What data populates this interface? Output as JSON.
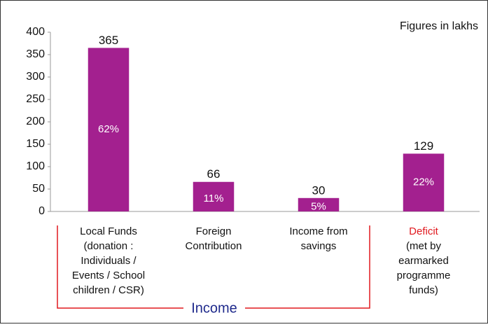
{
  "chart_data": {
    "type": "bar",
    "categories": [
      [
        "Local Funds",
        "(donation :",
        "Individuals /",
        "Events / School",
        "children / CSR)"
      ],
      [
        "Foreign",
        "Contribution"
      ],
      [
        "Income from",
        "savings"
      ],
      [
        "Deficit",
        "(met by",
        "earmarked",
        "programme",
        "funds)"
      ]
    ],
    "values": [
      365,
      66,
      30,
      129
    ],
    "share_labels": [
      "62%",
      "11%",
      "5%",
      "22%"
    ],
    "color": "#a3208f",
    "ylim": [
      0,
      400
    ],
    "yticks": [
      0,
      50,
      100,
      150,
      200,
      250,
      300,
      350,
      400
    ],
    "annotations": {
      "units": "Figures in lakhs",
      "group": "Income"
    }
  }
}
